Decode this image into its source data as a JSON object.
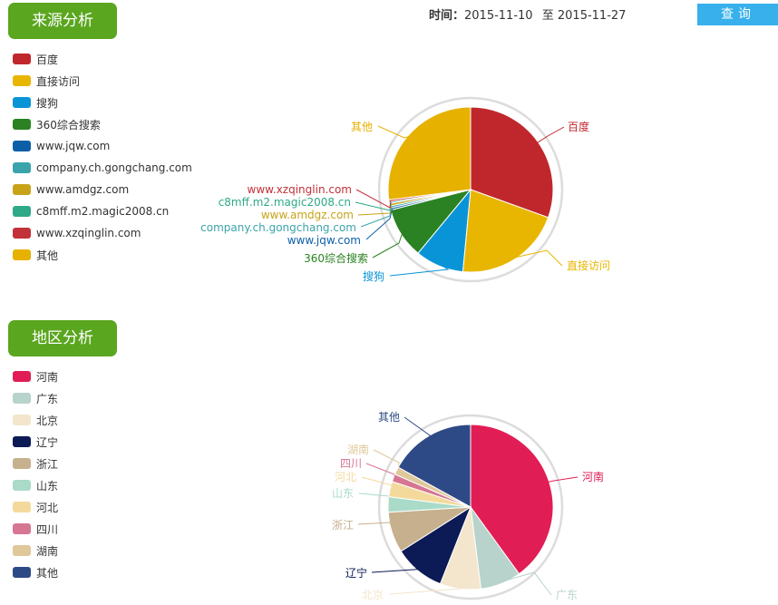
{
  "header": {
    "time_label": "时间：",
    "start_date": "2015-11-10",
    "to_label": "至",
    "end_date": "2015-11-27",
    "query_button": "查询"
  },
  "sections": {
    "source_title": "来源分析",
    "region_title": "地区分析"
  },
  "chart_data": [
    {
      "type": "pie",
      "title": "来源分析",
      "labels": [
        "百度",
        "直接访问",
        "搜狗",
        "360综合搜索",
        "www.jqw.com",
        "company.ch.gongchang.com",
        "www.amdgz.com",
        "c8mff.m2.magic2008.cn",
        "www.xzqinglin.com",
        "其他"
      ],
      "values": [
        30.5,
        21.0,
        9.5,
        10.0,
        0.4,
        0.4,
        0.5,
        0.3,
        0.4,
        27.0
      ],
      "colors": [
        "#c0272d",
        "#e8b600",
        "#0a94d8",
        "#2a8222",
        "#0c5fa6",
        "#3ba4ab",
        "#c8a31a",
        "#2ea987",
        "#c23238",
        "#e7b100"
      ],
      "legend_position": "left"
    },
    {
      "type": "pie",
      "title": "地区分析",
      "labels": [
        "河南",
        "广东",
        "北京",
        "辽宁",
        "浙江",
        "山东",
        "河北",
        "四川",
        "湖南",
        "其他"
      ],
      "values": [
        40.0,
        8.0,
        8.0,
        10.0,
        8.0,
        3.0,
        3.0,
        1.5,
        1.5,
        17.0
      ],
      "colors": [
        "#e11d55",
        "#b8d3cb",
        "#f3e6cc",
        "#0c1a55",
        "#c6b08e",
        "#a9dbc8",
        "#f3da9c",
        "#d67693",
        "#dfc89a",
        "#2e4a86"
      ],
      "legend_position": "left"
    }
  ]
}
